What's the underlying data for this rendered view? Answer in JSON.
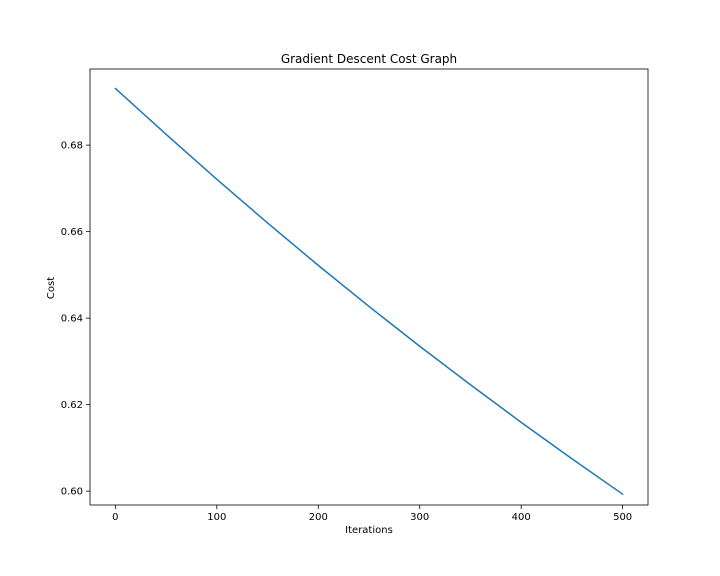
{
  "chart_data": {
    "type": "line",
    "title": "Gradient Descent Cost Graph",
    "xlabel": "Iterations",
    "ylabel": "Cost",
    "xlim": [
      -25,
      525
    ],
    "ylim": [
      0.5968,
      0.6976
    ],
    "xticks": [
      0,
      100,
      200,
      300,
      400,
      500
    ],
    "yticks": [
      0.6,
      0.62,
      0.64,
      0.66,
      0.68
    ],
    "xtick_labels": [
      "0",
      "100",
      "200",
      "300",
      "400",
      "500"
    ],
    "ytick_labels": [
      "0.60",
      "0.62",
      "0.64",
      "0.66",
      "0.68"
    ],
    "grid": false,
    "series": [
      {
        "color": "#1f77b4",
        "x": [
          0,
          50,
          100,
          150,
          200,
          250,
          300,
          350,
          400,
          450,
          500
        ],
        "y": [
          0.6931,
          0.6825,
          0.6721,
          0.662,
          0.6522,
          0.6427,
          0.6335,
          0.6246,
          0.6159,
          0.6075,
          0.5993
        ]
      }
    ]
  }
}
